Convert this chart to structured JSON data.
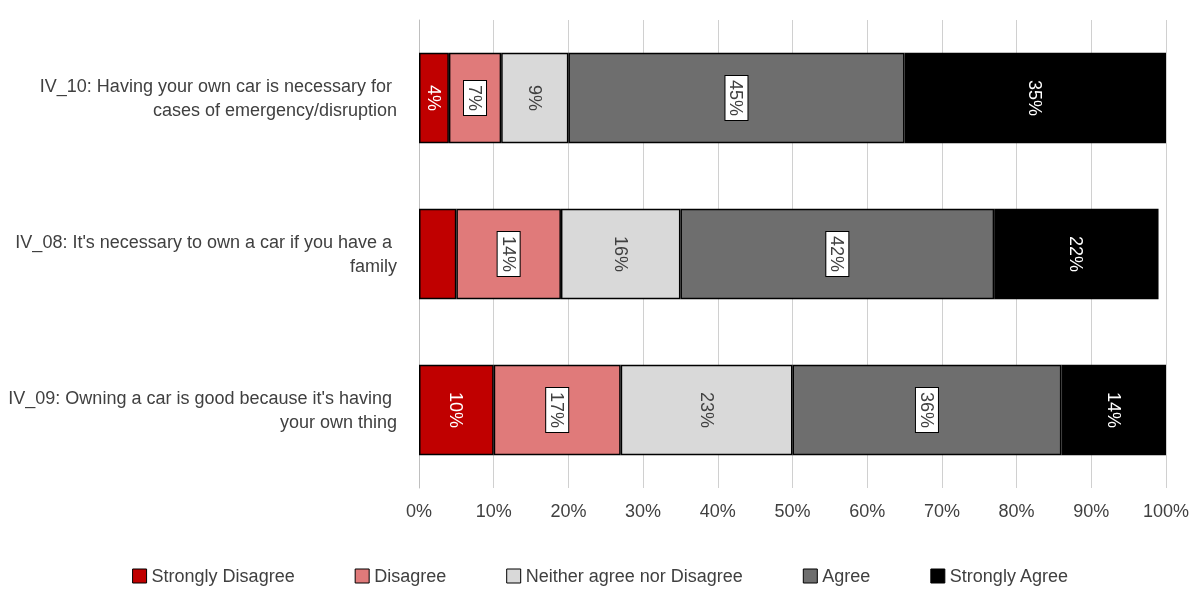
{
  "chart_data": {
    "type": "bar",
    "orientation": "horizontal",
    "stacked": true,
    "categories": [
      "IV_10: Having your own car is necessary for cases of emergency/disruption",
      "IV_08: It's necessary to own a car if you have a family",
      "IV_09: Owning a car is good because it's having your own thing"
    ],
    "series": [
      {
        "name": "Strongly Disagree",
        "color": "#c00000",
        "values": [
          4,
          5,
          10
        ],
        "value_labels": [
          "4%",
          null,
          "10%"
        ]
      },
      {
        "name": "Disagree",
        "color": "#e07a7a",
        "values": [
          7,
          14,
          17
        ],
        "value_labels": [
          "7%",
          "14%",
          "17%"
        ]
      },
      {
        "name": "Neither agree nor Disagree",
        "color": "#d9d9d9",
        "values": [
          9,
          16,
          23
        ],
        "value_labels": [
          "9%",
          "16%",
          "23%"
        ]
      },
      {
        "name": "Agree",
        "color": "#6e6e6e",
        "values": [
          45,
          42,
          36
        ],
        "value_labels": [
          "45%",
          "42%",
          "36%"
        ]
      },
      {
        "name": "Strongly Agree",
        "color": "#000000",
        "values": [
          35,
          22,
          14
        ],
        "value_labels": [
          "35%",
          "22%",
          "14%"
        ]
      }
    ],
    "xlim": [
      0,
      100
    ],
    "xticks": [
      {
        "value": 0,
        "label": "0%"
      },
      {
        "value": 10,
        "label": "10%"
      },
      {
        "value": 20,
        "label": "20%"
      },
      {
        "value": 30,
        "label": "30%"
      },
      {
        "value": 40,
        "label": "40%"
      },
      {
        "value": 50,
        "label": "50%"
      },
      {
        "value": 60,
        "label": "60%"
      },
      {
        "value": 70,
        "label": "70%"
      },
      {
        "value": 80,
        "label": "80%"
      },
      {
        "value": 90,
        "label": "90%"
      },
      {
        "value": 100,
        "label": "100%"
      }
    ],
    "grid": "x",
    "legend": "bottom"
  }
}
